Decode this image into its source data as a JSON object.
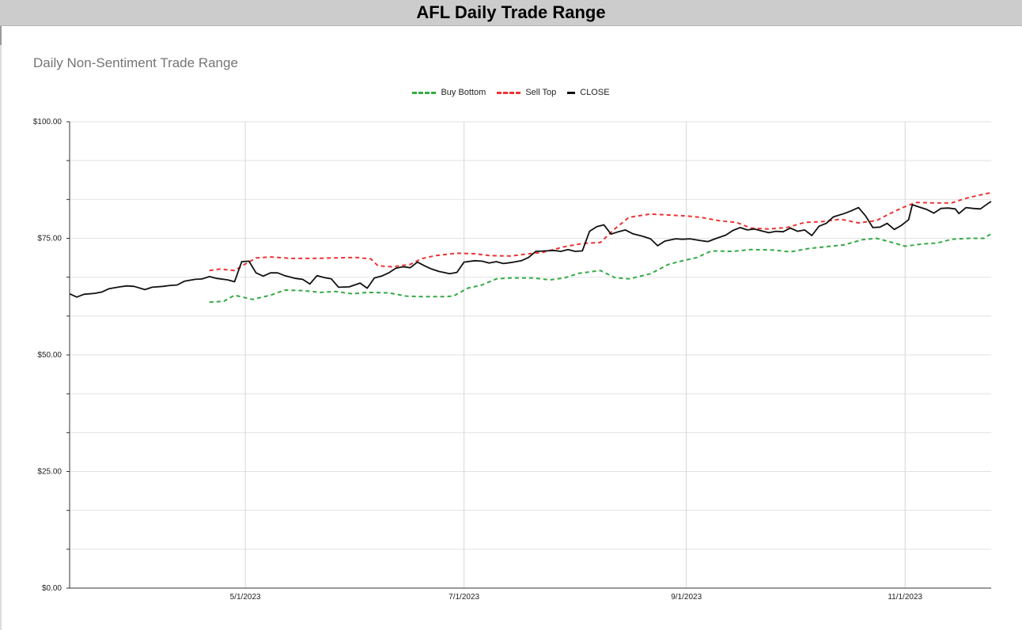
{
  "window": {
    "title": "AFL Daily Trade Range"
  },
  "chart_data": {
    "type": "line",
    "title": "Daily Non-Sentiment Trade Range",
    "xlabel": "",
    "ylabel": "",
    "ylim": [
      0,
      100
    ],
    "xlim": [
      "2023-03-13",
      "2023-11-25"
    ],
    "y_ticks": [
      "$0.00",
      "$25.00",
      "$50.00",
      "$75.00",
      "$100.00"
    ],
    "x_ticks": [
      {
        "date": "2023-05-01",
        "label": "5/1/2023"
      },
      {
        "date": "2023-07-01",
        "label": "7/1/2023"
      },
      {
        "date": "2023-09-01",
        "label": "9/1/2023"
      },
      {
        "date": "2023-11-01",
        "label": "11/1/2023"
      }
    ],
    "grid": true,
    "legend_position": "top",
    "series": [
      {
        "name": "Buy Bottom",
        "color": "#33aa44",
        "style": "dashed",
        "points": [
          [
            "2023-04-21",
            61.3
          ],
          [
            "2023-04-25",
            61.5
          ],
          [
            "2023-04-28",
            62.8
          ],
          [
            "2023-05-03",
            61.9
          ],
          [
            "2023-05-08",
            62.8
          ],
          [
            "2023-05-12",
            63.9
          ],
          [
            "2023-05-17",
            63.8
          ],
          [
            "2023-05-22",
            63.4
          ],
          [
            "2023-05-26",
            63.6
          ],
          [
            "2023-05-31",
            63.1
          ],
          [
            "2023-06-04",
            63.4
          ],
          [
            "2023-06-10",
            63.3
          ],
          [
            "2023-06-15",
            62.6
          ],
          [
            "2023-06-20",
            62.5
          ],
          [
            "2023-06-25",
            62.5
          ],
          [
            "2023-06-28",
            62.6
          ],
          [
            "2023-07-02",
            64.3
          ],
          [
            "2023-07-06",
            65.0
          ],
          [
            "2023-07-10",
            66.3
          ],
          [
            "2023-07-14",
            66.5
          ],
          [
            "2023-07-20",
            66.5
          ],
          [
            "2023-07-25",
            66.1
          ],
          [
            "2023-07-29",
            66.5
          ],
          [
            "2023-08-02",
            67.5
          ],
          [
            "2023-08-08",
            68.1
          ],
          [
            "2023-08-12",
            66.6
          ],
          [
            "2023-08-16",
            66.3
          ],
          [
            "2023-08-22",
            67.4
          ],
          [
            "2023-08-27",
            69.4
          ],
          [
            "2023-08-31",
            70.2
          ],
          [
            "2023-09-04",
            70.9
          ],
          [
            "2023-09-08",
            72.3
          ],
          [
            "2023-09-14",
            72.2
          ],
          [
            "2023-09-19",
            72.6
          ],
          [
            "2023-09-25",
            72.5
          ],
          [
            "2023-09-30",
            72.1
          ],
          [
            "2023-10-05",
            72.8
          ],
          [
            "2023-10-10",
            73.2
          ],
          [
            "2023-10-15",
            73.6
          ],
          [
            "2023-10-20",
            74.7
          ],
          [
            "2023-10-24",
            75.0
          ],
          [
            "2023-10-28",
            74.2
          ],
          [
            "2023-11-01",
            73.3
          ],
          [
            "2023-11-06",
            73.8
          ],
          [
            "2023-11-10",
            74.0
          ],
          [
            "2023-11-14",
            74.8
          ],
          [
            "2023-11-19",
            75.0
          ],
          [
            "2023-11-23",
            75.0
          ],
          [
            "2023-11-25",
            76.0
          ]
        ]
      },
      {
        "name": "Sell Top",
        "color": "#ee3333",
        "style": "dashed",
        "points": [
          [
            "2023-04-21",
            68.1
          ],
          [
            "2023-04-24",
            68.4
          ],
          [
            "2023-04-28",
            68.1
          ],
          [
            "2023-05-01",
            69.5
          ],
          [
            "2023-05-04",
            70.8
          ],
          [
            "2023-05-08",
            71.0
          ],
          [
            "2023-05-14",
            70.7
          ],
          [
            "2023-05-20",
            70.7
          ],
          [
            "2023-05-26",
            70.8
          ],
          [
            "2023-06-01",
            70.9
          ],
          [
            "2023-06-05",
            70.6
          ],
          [
            "2023-06-07",
            69.1
          ],
          [
            "2023-06-11",
            68.9
          ],
          [
            "2023-06-16",
            69.4
          ],
          [
            "2023-06-19",
            70.6
          ],
          [
            "2023-06-23",
            71.3
          ],
          [
            "2023-06-29",
            71.8
          ],
          [
            "2023-07-04",
            71.7
          ],
          [
            "2023-07-08",
            71.3
          ],
          [
            "2023-07-14",
            71.2
          ],
          [
            "2023-07-18",
            71.6
          ],
          [
            "2023-07-23",
            72.0
          ],
          [
            "2023-07-29",
            73.2
          ],
          [
            "2023-08-03",
            73.9
          ],
          [
            "2023-08-08",
            74.1
          ],
          [
            "2023-08-12",
            77.0
          ],
          [
            "2023-08-16",
            79.5
          ],
          [
            "2023-08-22",
            80.2
          ],
          [
            "2023-08-27",
            80.0
          ],
          [
            "2023-09-01",
            79.8
          ],
          [
            "2023-09-05",
            79.5
          ],
          [
            "2023-09-10",
            78.8
          ],
          [
            "2023-09-15",
            78.4
          ],
          [
            "2023-09-19",
            77.2
          ],
          [
            "2023-09-24",
            77.0
          ],
          [
            "2023-09-29",
            77.3
          ],
          [
            "2023-10-04",
            78.4
          ],
          [
            "2023-10-09",
            78.6
          ],
          [
            "2023-10-14",
            79.1
          ],
          [
            "2023-10-19",
            78.3
          ],
          [
            "2023-10-24",
            78.8
          ],
          [
            "2023-10-27",
            80.0
          ],
          [
            "2023-10-31",
            81.5
          ],
          [
            "2023-11-04",
            82.7
          ],
          [
            "2023-11-09",
            82.6
          ],
          [
            "2023-11-14",
            82.6
          ],
          [
            "2023-11-18",
            83.6
          ],
          [
            "2023-11-22",
            84.3
          ],
          [
            "2023-11-25",
            84.8
          ]
        ]
      },
      {
        "name": "CLOSE",
        "color": "#111111",
        "style": "solid",
        "points": [
          [
            "2023-03-13",
            63.1
          ],
          [
            "2023-03-15",
            62.4
          ],
          [
            "2023-03-17",
            63.0
          ],
          [
            "2023-03-20",
            63.2
          ],
          [
            "2023-03-22",
            63.5
          ],
          [
            "2023-03-24",
            64.2
          ],
          [
            "2023-03-27",
            64.6
          ],
          [
            "2023-03-29",
            64.8
          ],
          [
            "2023-03-31",
            64.7
          ],
          [
            "2023-04-03",
            64.0
          ],
          [
            "2023-04-05",
            64.5
          ],
          [
            "2023-04-08",
            64.7
          ],
          [
            "2023-04-10",
            64.9
          ],
          [
            "2023-04-12",
            65.0
          ],
          [
            "2023-04-14",
            65.8
          ],
          [
            "2023-04-17",
            66.2
          ],
          [
            "2023-04-19",
            66.3
          ],
          [
            "2023-04-21",
            66.8
          ],
          [
            "2023-04-23",
            66.4
          ],
          [
            "2023-04-26",
            66.1
          ],
          [
            "2023-04-28",
            65.7
          ],
          [
            "2023-04-30",
            70.0
          ],
          [
            "2023-05-02",
            70.1
          ],
          [
            "2023-05-04",
            67.6
          ],
          [
            "2023-05-06",
            66.9
          ],
          [
            "2023-05-08",
            67.6
          ],
          [
            "2023-05-10",
            67.6
          ],
          [
            "2023-05-12",
            67.0
          ],
          [
            "2023-05-15",
            66.4
          ],
          [
            "2023-05-17",
            66.2
          ],
          [
            "2023-05-19",
            65.2
          ],
          [
            "2023-05-21",
            67.0
          ],
          [
            "2023-05-23",
            66.6
          ],
          [
            "2023-05-25",
            66.3
          ],
          [
            "2023-05-27",
            64.5
          ],
          [
            "2023-05-30",
            64.6
          ],
          [
            "2023-06-02",
            65.4
          ],
          [
            "2023-06-04",
            64.3
          ],
          [
            "2023-06-06",
            66.5
          ],
          [
            "2023-06-08",
            66.9
          ],
          [
            "2023-06-10",
            67.6
          ],
          [
            "2023-06-12",
            68.6
          ],
          [
            "2023-06-14",
            68.9
          ],
          [
            "2023-06-16",
            68.7
          ],
          [
            "2023-06-18",
            69.9
          ],
          [
            "2023-06-20",
            69.1
          ],
          [
            "2023-06-22",
            68.4
          ],
          [
            "2023-06-24",
            67.9
          ],
          [
            "2023-06-27",
            67.4
          ],
          [
            "2023-06-29",
            67.7
          ],
          [
            "2023-07-01",
            69.9
          ],
          [
            "2023-07-04",
            70.2
          ],
          [
            "2023-07-06",
            70.1
          ],
          [
            "2023-07-08",
            69.7
          ],
          [
            "2023-07-10",
            70.0
          ],
          [
            "2023-07-12",
            69.6
          ],
          [
            "2023-07-14",
            69.8
          ],
          [
            "2023-07-17",
            70.2
          ],
          [
            "2023-07-19",
            70.9
          ],
          [
            "2023-07-21",
            72.2
          ],
          [
            "2023-07-24",
            72.3
          ],
          [
            "2023-07-26",
            72.4
          ],
          [
            "2023-07-28",
            72.2
          ],
          [
            "2023-07-30",
            72.6
          ],
          [
            "2023-08-01",
            72.2
          ],
          [
            "2023-08-03",
            72.3
          ],
          [
            "2023-08-05",
            76.5
          ],
          [
            "2023-08-07",
            77.5
          ],
          [
            "2023-08-09",
            77.9
          ],
          [
            "2023-08-11",
            75.9
          ],
          [
            "2023-08-13",
            76.4
          ],
          [
            "2023-08-15",
            76.8
          ],
          [
            "2023-08-17",
            76.0
          ],
          [
            "2023-08-20",
            75.4
          ],
          [
            "2023-08-22",
            74.9
          ],
          [
            "2023-08-24",
            73.4
          ],
          [
            "2023-08-26",
            74.4
          ],
          [
            "2023-08-29",
            74.9
          ],
          [
            "2023-08-31",
            74.8
          ],
          [
            "2023-09-02",
            74.9
          ],
          [
            "2023-09-05",
            74.5
          ],
          [
            "2023-09-07",
            74.3
          ],
          [
            "2023-09-09",
            74.9
          ],
          [
            "2023-09-12",
            75.7
          ],
          [
            "2023-09-14",
            76.7
          ],
          [
            "2023-09-16",
            77.3
          ],
          [
            "2023-09-18",
            76.8
          ],
          [
            "2023-09-20",
            77.0
          ],
          [
            "2023-09-22",
            76.6
          ],
          [
            "2023-09-24",
            76.2
          ],
          [
            "2023-09-26",
            76.5
          ],
          [
            "2023-09-28",
            76.4
          ],
          [
            "2023-09-30",
            77.2
          ],
          [
            "2023-10-02",
            76.5
          ],
          [
            "2023-10-04",
            76.8
          ],
          [
            "2023-10-06",
            75.6
          ],
          [
            "2023-10-08",
            77.6
          ],
          [
            "2023-10-10",
            78.2
          ],
          [
            "2023-10-12",
            79.6
          ],
          [
            "2023-10-15",
            80.3
          ],
          [
            "2023-10-17",
            80.9
          ],
          [
            "2023-10-19",
            81.6
          ],
          [
            "2023-10-21",
            79.8
          ],
          [
            "2023-10-23",
            77.3
          ],
          [
            "2023-10-25",
            77.4
          ],
          [
            "2023-10-27",
            78.2
          ],
          [
            "2023-10-29",
            76.9
          ],
          [
            "2023-10-31",
            77.8
          ],
          [
            "2023-11-02",
            79.0
          ],
          [
            "2023-11-03",
            82.2
          ],
          [
            "2023-11-05",
            81.7
          ],
          [
            "2023-11-07",
            81.2
          ],
          [
            "2023-11-09",
            80.4
          ],
          [
            "2023-11-11",
            81.4
          ],
          [
            "2023-11-13",
            81.5
          ],
          [
            "2023-11-15",
            81.3
          ],
          [
            "2023-11-16",
            80.3
          ],
          [
            "2023-11-18",
            81.6
          ],
          [
            "2023-11-20",
            81.4
          ],
          [
            "2023-11-22",
            81.3
          ],
          [
            "2023-11-24",
            82.4
          ],
          [
            "2023-11-25",
            82.9
          ]
        ]
      }
    ]
  }
}
